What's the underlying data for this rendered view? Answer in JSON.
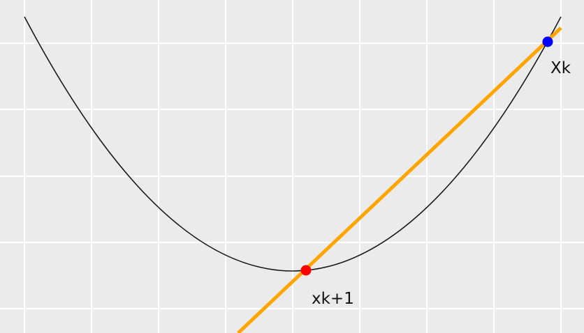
{
  "diagram": {
    "background_color": "#ebebeb",
    "grid_color": "#ffffff",
    "curve": {
      "color": "#1a1a1a",
      "shape": "parabola"
    },
    "tangent_line": {
      "color": "#ffa500"
    },
    "points": [
      {
        "id": "current",
        "label": "Xk",
        "color": "#0000ff"
      },
      {
        "id": "next",
        "label": "xk+1",
        "color": "#ff0000"
      }
    ]
  }
}
